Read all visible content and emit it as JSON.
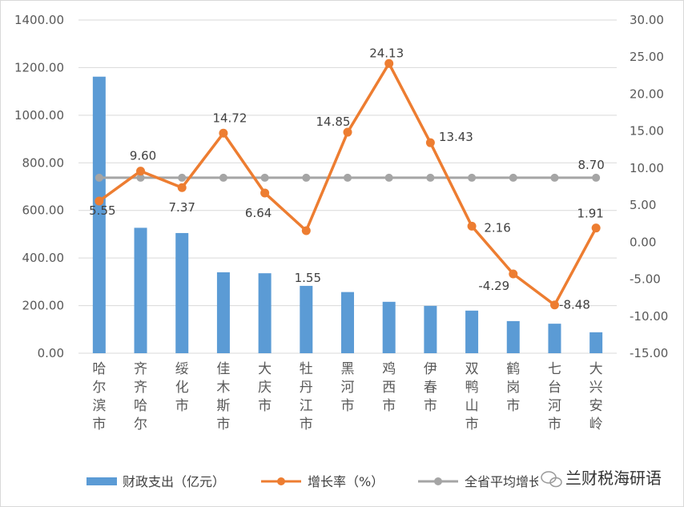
{
  "chart_data": {
    "type": "bar",
    "categories": [
      "哈尔滨市",
      "齐齐哈尔",
      "绥化市",
      "佳木斯市",
      "大庆市",
      "牡丹江市",
      "黑河市",
      "鸡西市",
      "伊春市",
      "双鸭山市",
      "鹤岗市",
      "七台河市",
      "大兴安岭"
    ],
    "series": [
      {
        "name": "财政支出（亿元）",
        "type": "bar",
        "axis": "left",
        "color": "#5B9BD5",
        "values": [
          1162,
          527,
          505,
          340,
          336,
          283,
          257,
          216,
          199,
          179,
          135,
          124,
          88
        ]
      },
      {
        "name": "增长率（%）",
        "type": "line",
        "axis": "right",
        "color": "#ED7D31",
        "values": [
          5.55,
          9.6,
          7.37,
          14.72,
          6.64,
          1.55,
          14.85,
          24.13,
          13.43,
          2.16,
          -4.29,
          -8.48,
          1.91
        ],
        "labels": [
          "5.55",
          "9.60",
          "7.37",
          "14.72",
          "6.64",
          "1.55",
          "14.85",
          "24.13",
          "13.43",
          "2.16",
          "-4.29",
          "-8.48",
          "1.91"
        ]
      },
      {
        "name": "全省平均增长率（%）",
        "type": "line",
        "axis": "right",
        "color": "#A5A5A5",
        "values": [
          8.7,
          8.7,
          8.7,
          8.7,
          8.7,
          8.7,
          8.7,
          8.7,
          8.7,
          8.7,
          8.7,
          8.7,
          8.7
        ],
        "label": "8.70"
      }
    ],
    "ylim_left": [
      0,
      1400
    ],
    "ylim_right": [
      -15,
      30
    ],
    "yticks_left": [
      "0.00",
      "200.00",
      "400.00",
      "600.00",
      "800.00",
      "1000.00",
      "1200.00",
      "1400.00"
    ],
    "yticks_right": [
      "-15.00",
      "-10.00",
      "-5.00",
      "0.00",
      "5.00",
      "10.00",
      "15.00",
      "20.00",
      "25.00",
      "30.00"
    ],
    "grid": true,
    "legend": "bottom"
  },
  "watermark": "兰财税海研语"
}
